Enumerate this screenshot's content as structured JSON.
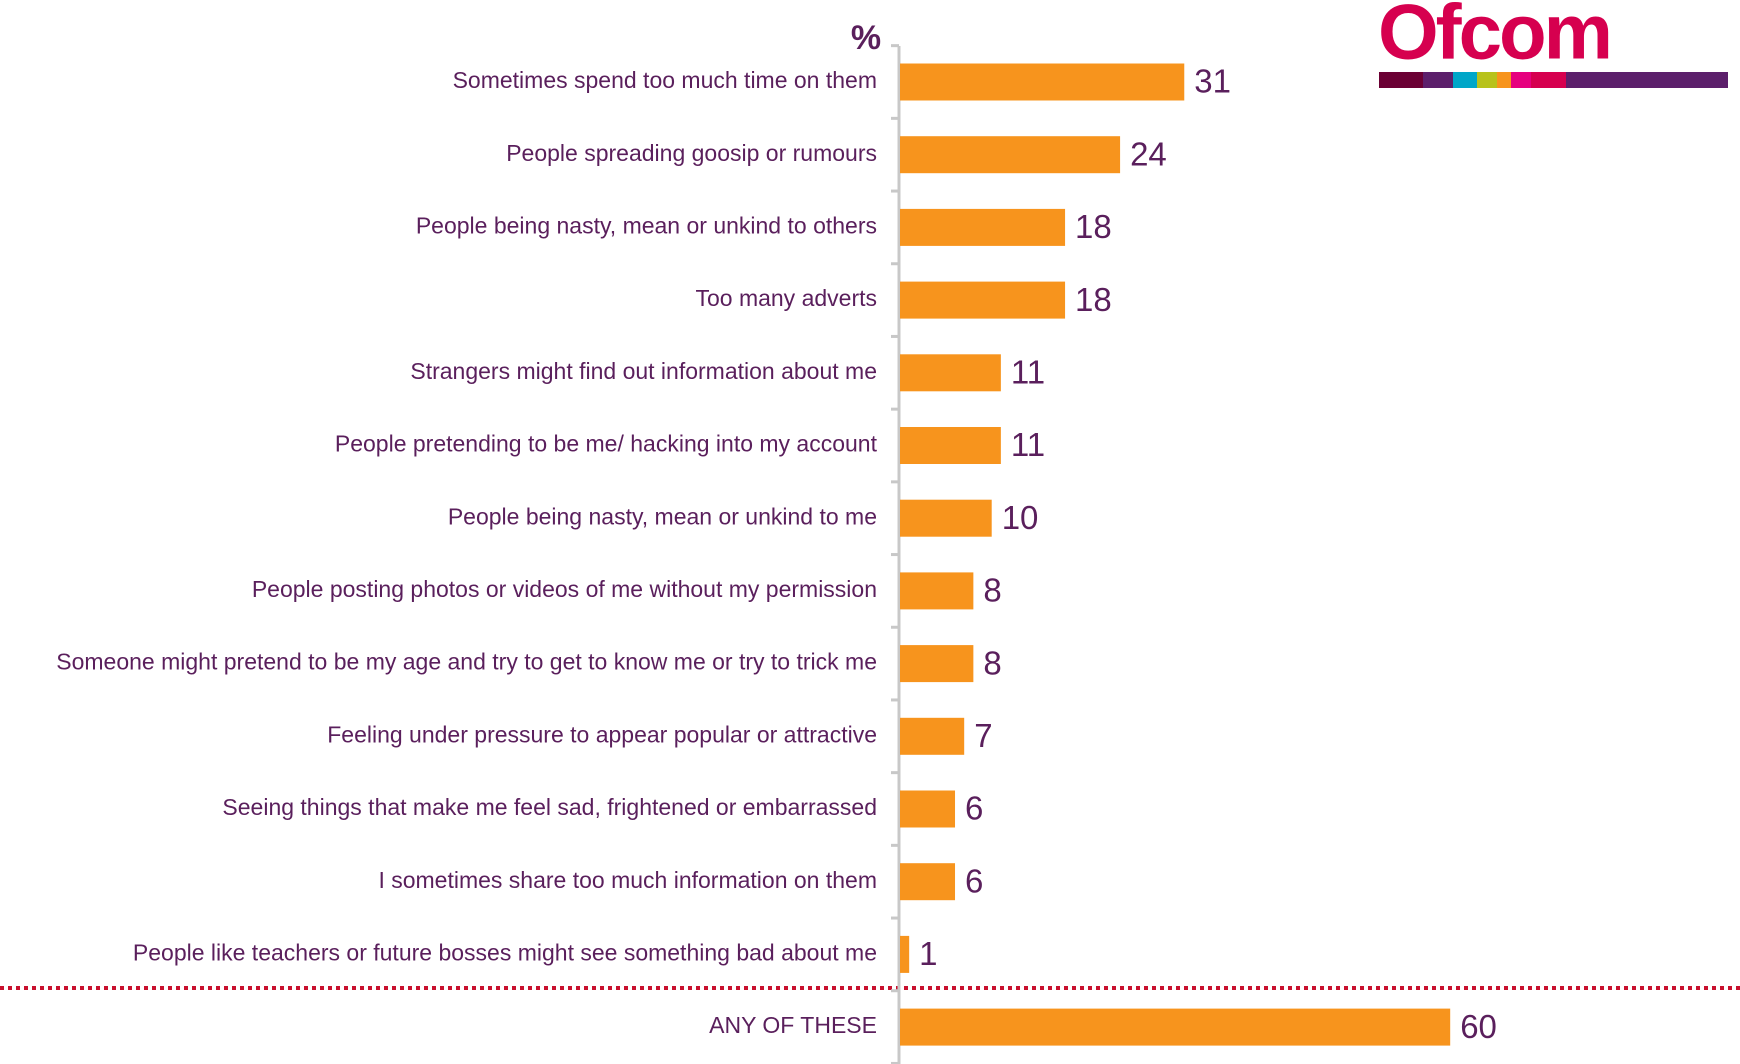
{
  "logo": "Ofcom",
  "chart_data": {
    "type": "bar",
    "orientation": "horizontal",
    "axis_label": "%",
    "categories": [
      "Sometimes spend too much time on them",
      "People spreading goosip or rumours",
      "People being nasty, mean or unkind to others",
      "Too many adverts",
      "Strangers might find out information about me",
      "People pretending to be me/ hacking into my account",
      "People being nasty, mean or unkind to me",
      "People posting photos or videos of me without my permission",
      "Someone might pretend to be my age and try to get to know me or try to trick me",
      "Feeling under pressure to appear popular or attractive",
      "Seeing things that make me feel sad, frightened or embarrassed",
      "I sometimes share too much information on them",
      "People like teachers or future bosses might see something bad about me",
      "ANY OF THESE"
    ],
    "values": [
      31,
      24,
      18,
      18,
      11,
      11,
      10,
      8,
      8,
      7,
      6,
      6,
      1,
      60
    ],
    "color": "#f7941d"
  }
}
